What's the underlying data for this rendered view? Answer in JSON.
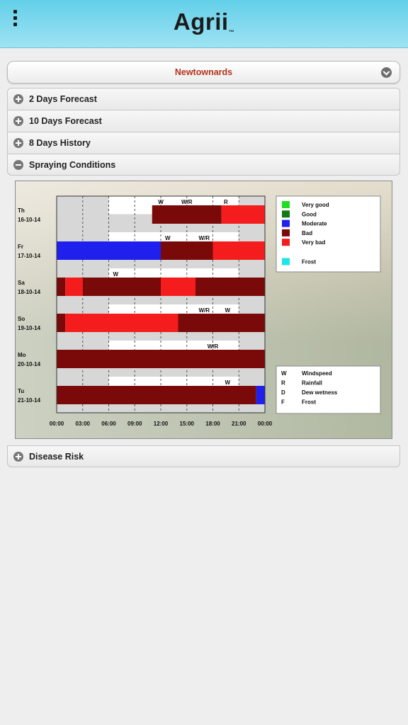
{
  "header": {
    "brand": "Agrii",
    "trademark": "™"
  },
  "location": {
    "selected": "Newtownards"
  },
  "sections": [
    {
      "label": "2 Days Forecast",
      "state": "collapsed"
    },
    {
      "label": "10 Days Forecast",
      "state": "collapsed"
    },
    {
      "label": "8 Days History",
      "state": "collapsed"
    },
    {
      "label": "Spraying Conditions",
      "state": "expanded"
    }
  ],
  "disease_section": {
    "label": "Disease Risk",
    "state": "collapsed"
  },
  "colors": {
    "very_good": "#22dd22",
    "good": "#127a12",
    "moderate": "#1f1fee",
    "bad": "#7a0a0a",
    "very_bad": "#f41c1c",
    "frost": "#1ee6e6"
  },
  "chart_data": {
    "type": "heatmap",
    "x_ticks": [
      "00:00",
      "03:00",
      "06:00",
      "09:00",
      "12:00",
      "15:00",
      "18:00",
      "21:00",
      "00:00"
    ],
    "x_range_hours": [
      0,
      24
    ],
    "days": [
      {
        "day": "Th",
        "date": "16-10-14",
        "segments": [
          {
            "from": 0,
            "to": 11,
            "cond": "none"
          },
          {
            "from": 11,
            "to": 19,
            "cond": "bad"
          },
          {
            "from": 19,
            "to": 24,
            "cond": "very_bad"
          }
        ],
        "flags": [
          {
            "at": 12,
            "text": "W"
          },
          {
            "at": 15,
            "text": "W/R"
          },
          {
            "at": 19.5,
            "text": "R"
          }
        ]
      },
      {
        "day": "Fr",
        "date": "17-10-14",
        "segments": [
          {
            "from": 0,
            "to": 12,
            "cond": "moderate"
          },
          {
            "from": 12,
            "to": 18,
            "cond": "bad"
          },
          {
            "from": 18,
            "to": 24,
            "cond": "very_bad"
          }
        ],
        "flags": [
          {
            "at": 12.8,
            "text": "W"
          },
          {
            "at": 17,
            "text": "W/R"
          }
        ]
      },
      {
        "day": "Sa",
        "date": "18-10-14",
        "segments": [
          {
            "from": 0,
            "to": 1,
            "cond": "bad"
          },
          {
            "from": 1,
            "to": 3,
            "cond": "very_bad"
          },
          {
            "from": 3,
            "to": 12,
            "cond": "bad"
          },
          {
            "from": 12,
            "to": 16,
            "cond": "very_bad"
          },
          {
            "from": 16,
            "to": 24,
            "cond": "bad"
          }
        ],
        "flags": [
          {
            "at": 6.8,
            "text": "W"
          }
        ]
      },
      {
        "day": "So",
        "date": "19-10-14",
        "segments": [
          {
            "from": 0,
            "to": 1,
            "cond": "bad"
          },
          {
            "from": 1,
            "to": 14,
            "cond": "very_bad"
          },
          {
            "from": 14,
            "to": 24,
            "cond": "bad"
          }
        ],
        "flags": [
          {
            "at": 17,
            "text": "W/R"
          },
          {
            "at": 19.7,
            "text": "W"
          }
        ]
      },
      {
        "day": "Mo",
        "date": "20-10-14",
        "segments": [
          {
            "from": 0,
            "to": 24,
            "cond": "bad"
          }
        ],
        "flags": [
          {
            "at": 18,
            "text": "W/R"
          }
        ]
      },
      {
        "day": "Tu",
        "date": "21-10-14",
        "segments": [
          {
            "from": 0,
            "to": 23,
            "cond": "bad"
          },
          {
            "from": 23,
            "to": 24,
            "cond": "moderate"
          }
        ],
        "flags": [
          {
            "at": 19.7,
            "text": "W"
          }
        ]
      }
    ],
    "legend_conditions": [
      {
        "key": "very_good",
        "label": "Very good"
      },
      {
        "key": "good",
        "label": "Good"
      },
      {
        "key": "moderate",
        "label": "Moderate"
      },
      {
        "key": "bad",
        "label": "Bad"
      },
      {
        "key": "very_bad",
        "label": "Very bad"
      },
      {
        "key": "frost",
        "label": "Frost"
      }
    ],
    "legend_codes": [
      {
        "code": "W",
        "label": "Windspeed"
      },
      {
        "code": "R",
        "label": "Rainfall"
      },
      {
        "code": "D",
        "label": "Dew wetness"
      },
      {
        "code": "F",
        "label": "Frost"
      }
    ]
  }
}
